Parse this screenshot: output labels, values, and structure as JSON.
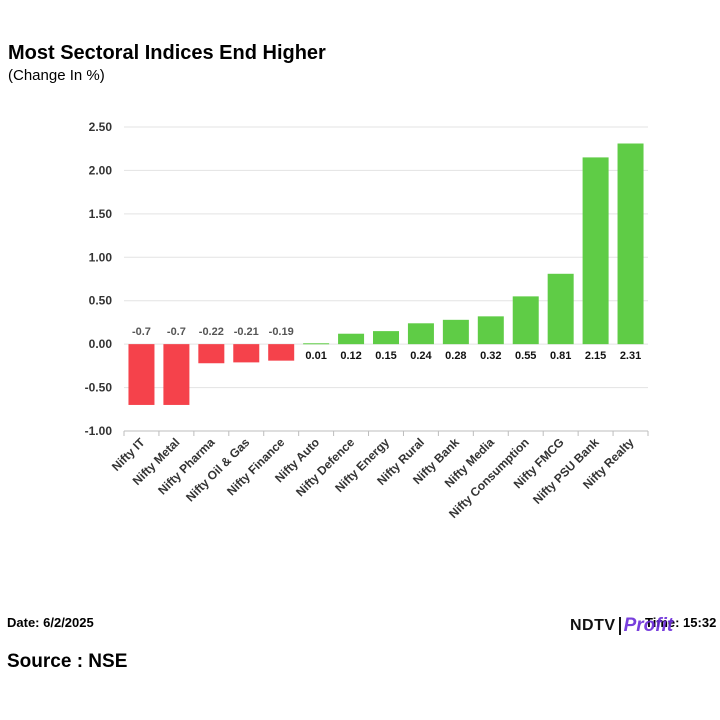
{
  "chart_data": {
    "type": "bar",
    "title": "Most Sectoral Indices End Higher",
    "subtitle": "(Change In %)",
    "categories": [
      "Nifty IT",
      "Nifty Metal",
      "Nifty Pharma",
      "Nifty Oil & Gas",
      "Nifty Finance",
      "Nifty Auto",
      "Nifty Defence",
      "Nifty Energy",
      "Nifty Rural",
      "Nifty Bank",
      "Nifty Media",
      "Nifty Consumption",
      "Nifty FMCG",
      "Nifty PSU Bank",
      "Nifty Realty"
    ],
    "values": [
      -0.7,
      -0.7,
      -0.22,
      -0.21,
      -0.19,
      0.01,
      0.12,
      0.15,
      0.24,
      0.28,
      0.32,
      0.55,
      0.81,
      2.15,
      2.31
    ],
    "data_labels": [
      "-0.7",
      "-0.7",
      "-0.22",
      "-0.21",
      "-0.19",
      "0.01",
      "0.12",
      "0.15",
      "0.24",
      "0.28",
      "0.32",
      "0.55",
      "0.81",
      "2.15",
      "2.31"
    ],
    "y_ticks": [
      "-1.00",
      "-0.50",
      "0.00",
      "0.50",
      "1.00",
      "1.50",
      "2.00",
      "2.50"
    ],
    "ylim": [
      -1.0,
      2.5
    ],
    "grid": true,
    "legend": "none",
    "colors": {
      "positive": "#5fcc46",
      "negative": "#f5424b"
    }
  },
  "footer": {
    "date": "Date: 6/2/2025",
    "time": "Time: 15:32",
    "source": "Source : NSE"
  },
  "logo": {
    "ndtv": "NDTV",
    "profit": "Profit"
  }
}
